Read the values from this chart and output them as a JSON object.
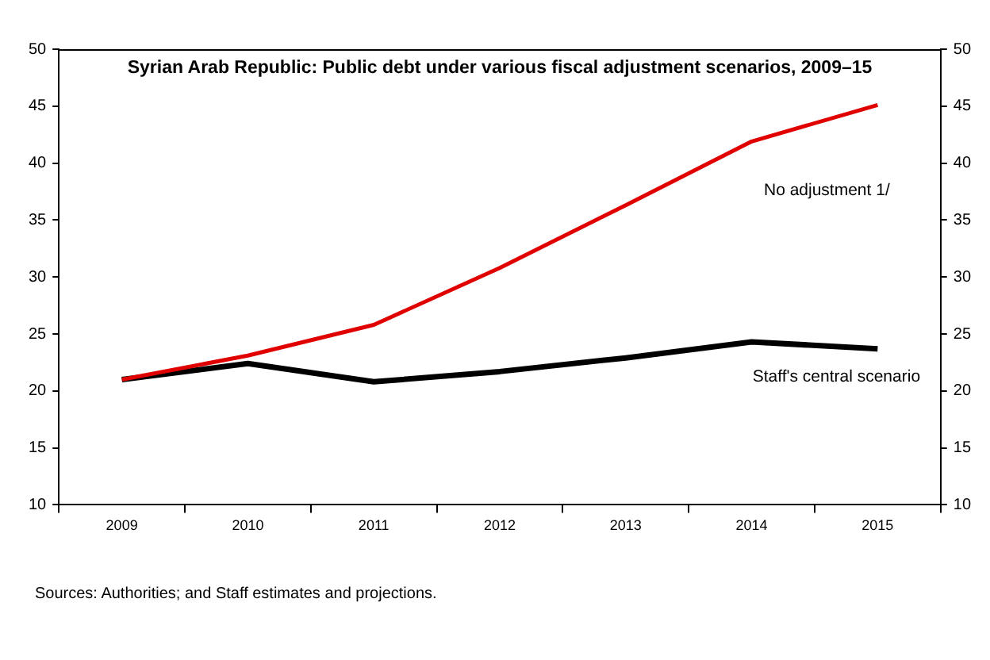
{
  "chart_data": {
    "type": "line",
    "title": "Syrian Arab Republic: Public debt under various fiscal adjustment scenarios, 2009–15",
    "categories": [
      "2009",
      "2010",
      "2011",
      "2012",
      "2013",
      "2014",
      "2015"
    ],
    "series": [
      {
        "name": "No adjustment 1/",
        "color": "#e00000",
        "values": [
          21.0,
          23.1,
          25.8,
          30.8,
          36.3,
          41.9,
          45.1
        ]
      },
      {
        "name": "Staff's central scenario",
        "color": "#000000",
        "values": [
          21.0,
          22.4,
          20.8,
          21.7,
          22.9,
          24.3,
          23.7
        ]
      }
    ],
    "ylim": [
      10,
      50
    ],
    "yticks": [
      10,
      15,
      20,
      25,
      30,
      35,
      40,
      45,
      50
    ],
    "y2lim": [
      10,
      50
    ],
    "y2ticks": [
      10,
      15,
      20,
      25,
      30,
      35,
      40,
      45,
      50
    ],
    "grid": false,
    "legend": false,
    "marker": "none",
    "line_style": "solid",
    "annotations": [
      "Sources: Authorities; and Staff estimates and projections."
    ]
  }
}
